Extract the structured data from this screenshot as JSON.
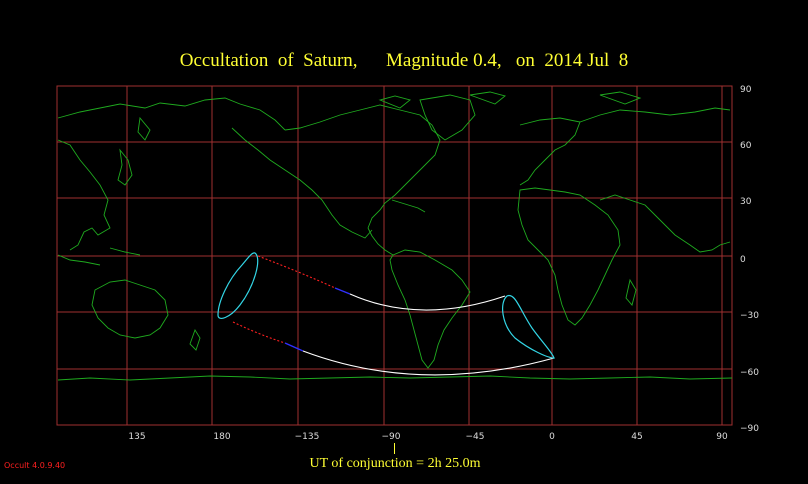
{
  "title": "Occultation  of  Saturn,      Magnitude 0.4,   on  2014 Jul  8",
  "conjunction_label": "UT of conjunction =  2h 25.0m",
  "version_label": "Occult 4.0.9.40",
  "map": {
    "projection": "equirectangular",
    "lon_range": [
      91,
      275
    ],
    "lat_range": [
      -90,
      90
    ],
    "lon_ticks": [
      {
        "value": 135,
        "label": "135"
      },
      {
        "value": 180,
        "label": "180"
      },
      {
        "value": 225,
        "label": "−135"
      },
      {
        "value": 270,
        "label": "−90"
      }
    ],
    "lat_ticks": [
      {
        "value": 90,
        "label": "90"
      },
      {
        "value": 60,
        "label": "60"
      },
      {
        "value": 30,
        "label": "30"
      },
      {
        "value": 0,
        "label": "0"
      },
      {
        "value": -30,
        "label": "−30"
      },
      {
        "value": -60,
        "label": "−60"
      },
      {
        "value": -90,
        "label": "−90"
      }
    ],
    "colors": {
      "grid": "#a03030",
      "coast": "#1faa1f",
      "path_day": "#ffffff",
      "path_night": "#ff2020",
      "path_twilight": "#3030ff",
      "limit_loop": "#33d6e6",
      "title": "#ffff33"
    }
  },
  "extra_tick_labels": [
    {
      "label": "−45"
    },
    {
      "label": "0"
    },
    {
      "label": "45"
    },
    {
      "label": "90"
    }
  ]
}
